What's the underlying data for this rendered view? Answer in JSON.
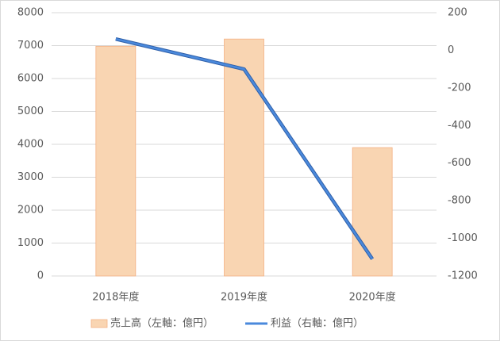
{
  "chart_data": {
    "type": "bar",
    "categories": [
      "2018年度",
      "2019年度",
      "2020年度"
    ],
    "series": [
      {
        "name": "売上高（左軸：億円）",
        "color": "#f9d5b2",
        "values": [
          6980,
          7200,
          3900
        ]
      },
      {
        "name": "利益（右軸：億円）",
        "color": "#4a89dc",
        "values": [
          60,
          -100,
          -1110
        ],
        "axis": "y2",
        "type": "line"
      }
    ],
    "ylim": [
      0,
      8000
    ],
    "yticks": [
      0,
      1000,
      2000,
      3000,
      4000,
      5000,
      6000,
      7000,
      8000
    ],
    "y2lim": [
      -1200,
      200
    ],
    "y2ticks": [
      -1200,
      -1000,
      -800,
      -600,
      -400,
      -200,
      0,
      200
    ],
    "grid": true,
    "legend": "bottom"
  }
}
